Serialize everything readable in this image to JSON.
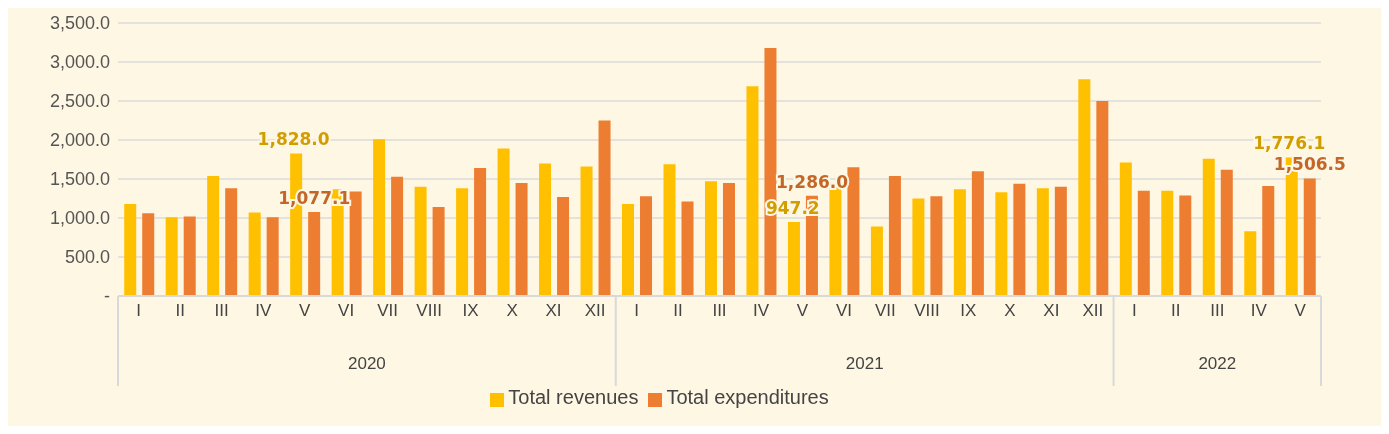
{
  "chart_data": {
    "type": "bar",
    "categories": [
      "I",
      "II",
      "III",
      "IV",
      "V",
      "VI",
      "VII",
      "VIII",
      "IX",
      "X",
      "XI",
      "XII",
      "I",
      "II",
      "III",
      "IV",
      "V",
      "VI",
      "VII",
      "VIII",
      "IX",
      "X",
      "XI",
      "XII",
      "I",
      "II",
      "III",
      "IV",
      "V"
    ],
    "series": [
      {
        "name": "Total revenues",
        "color": "#ffc000",
        "values": [
          1180,
          1010,
          1540,
          1070,
          1828.0,
          1370,
          2010,
          1400,
          1380,
          1890,
          1700,
          1660,
          1180,
          1690,
          1470,
          2690,
          947.2,
          1400,
          890,
          1250,
          1370,
          1330,
          1380,
          2780,
          1710,
          1350,
          1760,
          830,
          1776.1
        ],
        "value_labels": [
          null,
          null,
          null,
          null,
          "1,828.0",
          null,
          null,
          null,
          null,
          null,
          null,
          null,
          null,
          null,
          null,
          null,
          "947.2",
          null,
          null,
          null,
          null,
          null,
          null,
          null,
          null,
          null,
          null,
          null,
          "1,776.1"
        ]
      },
      {
        "name": "Total expenditures",
        "color": "#ed7d31",
        "values": [
          1060,
          1020,
          1380,
          1010,
          1077.1,
          1340,
          1530,
          1140,
          1640,
          1450,
          1270,
          2250,
          1280,
          1210,
          1450,
          3180,
          1286.0,
          1650,
          1540,
          1280,
          1600,
          1440,
          1400,
          2500,
          1350,
          1290,
          1620,
          1410,
          1506.5
        ],
        "value_labels": [
          null,
          null,
          null,
          null,
          "1,077.1",
          null,
          null,
          null,
          null,
          null,
          null,
          null,
          null,
          null,
          null,
          null,
          "1,286.0",
          null,
          null,
          null,
          null,
          null,
          null,
          null,
          null,
          null,
          null,
          null,
          "1,506.5"
        ]
      }
    ],
    "ylim": [
      0,
      3500
    ],
    "yticks": [
      {
        "value": 0,
        "label": "-"
      },
      {
        "value": 500,
        "label": "500.0"
      },
      {
        "value": 1000,
        "label": "1,000.0"
      },
      {
        "value": 1500,
        "label": "1,500.0"
      },
      {
        "value": 2000,
        "label": "2,000.0"
      },
      {
        "value": 2500,
        "label": "2,500.0"
      },
      {
        "value": 3000,
        "label": "3,000.0"
      },
      {
        "value": 3500,
        "label": "3,500.0"
      }
    ],
    "annotations": [
      "2020",
      "2021",
      "2022"
    ],
    "grid": "y",
    "legend": "bottom"
  }
}
